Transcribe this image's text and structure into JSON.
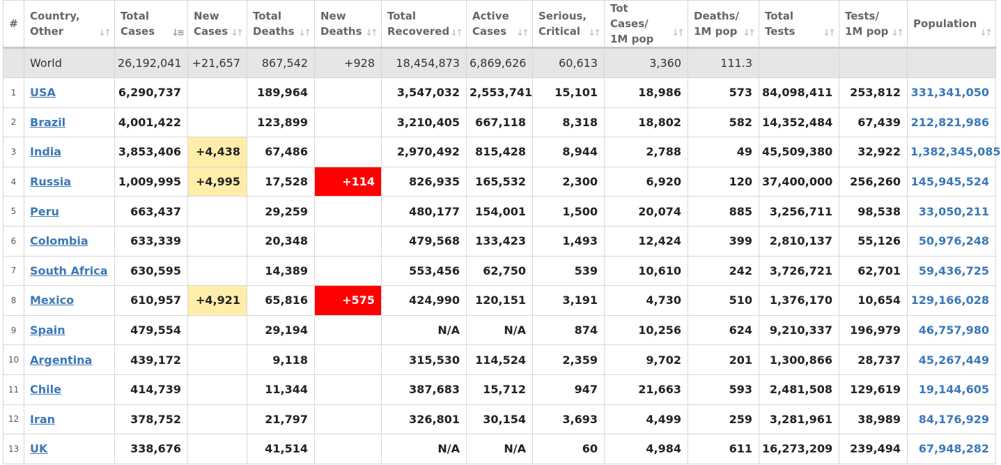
{
  "columns": [
    {
      "key": "idx",
      "l1": "#",
      "l2": ""
    },
    {
      "key": "country",
      "l1": "Country,",
      "l2": "Other"
    },
    {
      "key": "total_cases",
      "l1": "Total",
      "l2": "Cases"
    },
    {
      "key": "new_cases",
      "l1": "New",
      "l2": "Cases"
    },
    {
      "key": "total_deaths",
      "l1": "Total",
      "l2": "Deaths"
    },
    {
      "key": "new_deaths",
      "l1": "New",
      "l2": "Deaths"
    },
    {
      "key": "total_recovered",
      "l1": "Total",
      "l2": "Recovered"
    },
    {
      "key": "active_cases",
      "l1": "Active",
      "l2": "Cases"
    },
    {
      "key": "serious",
      "l1": "Serious,",
      "l2": "Critical"
    },
    {
      "key": "cases_per_1m",
      "l1": "Tot Cases/",
      "l2": "1M pop"
    },
    {
      "key": "deaths_per_1m",
      "l1": "Deaths/",
      "l2": "1M pop"
    },
    {
      "key": "total_tests",
      "l1": "Total",
      "l2": "Tests"
    },
    {
      "key": "tests_per_1m",
      "l1": "Tests/",
      "l2": "1M pop"
    },
    {
      "key": "population",
      "l1": "Population",
      "l2": ""
    }
  ],
  "sort_icons": {
    "default": "sort-both-icon",
    "active": "sort-desc-icon",
    "active_column": "total_cases"
  },
  "colors": {
    "link": "#3b78b8",
    "new_cases_highlight": "#ffeeaa",
    "new_deaths_highlight": "#ff0000",
    "world_row_bg": "#e6e6e6"
  },
  "world": {
    "country": "World",
    "total_cases": "26,192,041",
    "new_cases": "+21,657",
    "total_deaths": "867,542",
    "new_deaths": "+928",
    "total_recovered": "18,454,873",
    "active_cases": "6,869,626",
    "serious": "60,613",
    "cases_per_1m": "3,360",
    "deaths_per_1m": "111.3",
    "total_tests": "",
    "tests_per_1m": "",
    "population": ""
  },
  "rows": [
    {
      "idx": "1",
      "country": "USA",
      "total_cases": "6,290,737",
      "new_cases": "",
      "total_deaths": "189,964",
      "new_deaths": "",
      "total_recovered": "3,547,032",
      "active_cases": "2,553,741",
      "serious": "15,101",
      "cases_per_1m": "18,986",
      "deaths_per_1m": "573",
      "total_tests": "84,098,411",
      "tests_per_1m": "253,812",
      "population": "331,341,050"
    },
    {
      "idx": "2",
      "country": "Brazil",
      "total_cases": "4,001,422",
      "new_cases": "",
      "total_deaths": "123,899",
      "new_deaths": "",
      "total_recovered": "3,210,405",
      "active_cases": "667,118",
      "serious": "8,318",
      "cases_per_1m": "18,802",
      "deaths_per_1m": "582",
      "total_tests": "14,352,484",
      "tests_per_1m": "67,439",
      "population": "212,821,986"
    },
    {
      "idx": "3",
      "country": "India",
      "total_cases": "3,853,406",
      "new_cases": "+4,438",
      "total_deaths": "67,486",
      "new_deaths": "",
      "total_recovered": "2,970,492",
      "active_cases": "815,428",
      "serious": "8,944",
      "cases_per_1m": "2,788",
      "deaths_per_1m": "49",
      "total_tests": "45,509,380",
      "tests_per_1m": "32,922",
      "population": "1,382,345,085"
    },
    {
      "idx": "4",
      "country": "Russia",
      "total_cases": "1,009,995",
      "new_cases": "+4,995",
      "total_deaths": "17,528",
      "new_deaths": "+114",
      "total_recovered": "826,935",
      "active_cases": "165,532",
      "serious": "2,300",
      "cases_per_1m": "6,920",
      "deaths_per_1m": "120",
      "total_tests": "37,400,000",
      "tests_per_1m": "256,260",
      "population": "145,945,524"
    },
    {
      "idx": "5",
      "country": "Peru",
      "total_cases": "663,437",
      "new_cases": "",
      "total_deaths": "29,259",
      "new_deaths": "",
      "total_recovered": "480,177",
      "active_cases": "154,001",
      "serious": "1,500",
      "cases_per_1m": "20,074",
      "deaths_per_1m": "885",
      "total_tests": "3,256,711",
      "tests_per_1m": "98,538",
      "population": "33,050,211"
    },
    {
      "idx": "6",
      "country": "Colombia",
      "total_cases": "633,339",
      "new_cases": "",
      "total_deaths": "20,348",
      "new_deaths": "",
      "total_recovered": "479,568",
      "active_cases": "133,423",
      "serious": "1,493",
      "cases_per_1m": "12,424",
      "deaths_per_1m": "399",
      "total_tests": "2,810,137",
      "tests_per_1m": "55,126",
      "population": "50,976,248"
    },
    {
      "idx": "7",
      "country": "South Africa",
      "total_cases": "630,595",
      "new_cases": "",
      "total_deaths": "14,389",
      "new_deaths": "",
      "total_recovered": "553,456",
      "active_cases": "62,750",
      "serious": "539",
      "cases_per_1m": "10,610",
      "deaths_per_1m": "242",
      "total_tests": "3,726,721",
      "tests_per_1m": "62,701",
      "population": "59,436,725"
    },
    {
      "idx": "8",
      "country": "Mexico",
      "total_cases": "610,957",
      "new_cases": "+4,921",
      "total_deaths": "65,816",
      "new_deaths": "+575",
      "total_recovered": "424,990",
      "active_cases": "120,151",
      "serious": "3,191",
      "cases_per_1m": "4,730",
      "deaths_per_1m": "510",
      "total_tests": "1,376,170",
      "tests_per_1m": "10,654",
      "population": "129,166,028"
    },
    {
      "idx": "9",
      "country": "Spain",
      "total_cases": "479,554",
      "new_cases": "",
      "total_deaths": "29,194",
      "new_deaths": "",
      "total_recovered": "N/A",
      "active_cases": "N/A",
      "serious": "874",
      "cases_per_1m": "10,256",
      "deaths_per_1m": "624",
      "total_tests": "9,210,337",
      "tests_per_1m": "196,979",
      "population": "46,757,980"
    },
    {
      "idx": "10",
      "country": "Argentina",
      "total_cases": "439,172",
      "new_cases": "",
      "total_deaths": "9,118",
      "new_deaths": "",
      "total_recovered": "315,530",
      "active_cases": "114,524",
      "serious": "2,359",
      "cases_per_1m": "9,702",
      "deaths_per_1m": "201",
      "total_tests": "1,300,866",
      "tests_per_1m": "28,737",
      "population": "45,267,449"
    },
    {
      "idx": "11",
      "country": "Chile",
      "total_cases": "414,739",
      "new_cases": "",
      "total_deaths": "11,344",
      "new_deaths": "",
      "total_recovered": "387,683",
      "active_cases": "15,712",
      "serious": "947",
      "cases_per_1m": "21,663",
      "deaths_per_1m": "593",
      "total_tests": "2,481,508",
      "tests_per_1m": "129,619",
      "population": "19,144,605"
    },
    {
      "idx": "12",
      "country": "Iran",
      "total_cases": "378,752",
      "new_cases": "",
      "total_deaths": "21,797",
      "new_deaths": "",
      "total_recovered": "326,801",
      "active_cases": "30,154",
      "serious": "3,693",
      "cases_per_1m": "4,499",
      "deaths_per_1m": "259",
      "total_tests": "3,281,961",
      "tests_per_1m": "38,989",
      "population": "84,176,929"
    },
    {
      "idx": "13",
      "country": "UK",
      "total_cases": "338,676",
      "new_cases": "",
      "total_deaths": "41,514",
      "new_deaths": "",
      "total_recovered": "N/A",
      "active_cases": "N/A",
      "serious": "60",
      "cases_per_1m": "4,984",
      "deaths_per_1m": "611",
      "total_tests": "16,273,209",
      "tests_per_1m": "239,494",
      "population": "67,948,282"
    }
  ]
}
